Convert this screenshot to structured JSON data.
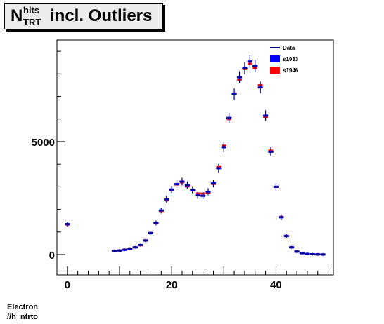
{
  "title": {
    "base": "N",
    "sup": "hits",
    "sub": "TRT",
    "rest": "incl. Outliers"
  },
  "footer": {
    "line1": "Electron",
    "line2": "//h_ntrto"
  },
  "colors": {
    "data": "#00008b",
    "s1933": "#0000ff",
    "s1946": "#ff0000"
  },
  "chart_data": {
    "type": "scatter",
    "title": "N_TRT^hits incl. Outliers",
    "xlabel": "",
    "ylabel": "",
    "xlim": [
      -2,
      51
    ],
    "ylim": [
      -900,
      9500
    ],
    "xticks": [
      0,
      20,
      40
    ],
    "yticks": [
      0,
      5000
    ],
    "legend": {
      "placement": "top-right",
      "entries": [
        "Data",
        "s1933",
        "s1946"
      ]
    },
    "x": [
      0,
      9,
      10,
      11,
      12,
      13,
      14,
      15,
      16,
      17,
      18,
      19,
      20,
      21,
      22,
      23,
      24,
      25,
      26,
      27,
      28,
      29,
      30,
      31,
      32,
      33,
      34,
      35,
      36,
      37,
      38,
      39,
      40,
      41,
      42,
      43,
      44,
      45,
      46,
      47,
      48,
      49
    ],
    "series": [
      {
        "name": "Data",
        "style": "line",
        "values": [
          1350,
          160,
          180,
          210,
          260,
          320,
          420,
          620,
          950,
          1400,
          1950,
          2450,
          2880,
          3120,
          3230,
          3070,
          2870,
          2620,
          2600,
          2780,
          3150,
          3820,
          4750,
          6050,
          7100,
          7850,
          8250,
          8550,
          8350,
          7400,
          6150,
          4550,
          3000,
          1650,
          820,
          320,
          130,
          60,
          30,
          15,
          8,
          5
        ]
      },
      {
        "name": "s1933",
        "style": "box",
        "values": [
          1350,
          160,
          180,
          210,
          260,
          320,
          420,
          620,
          950,
          1400,
          1950,
          2450,
          2880,
          3120,
          3230,
          3070,
          2870,
          2620,
          2600,
          2780,
          3150,
          3820,
          4750,
          6050,
          7100,
          7850,
          8250,
          8550,
          8350,
          7400,
          6150,
          4550,
          3000,
          1650,
          820,
          320,
          130,
          60,
          30,
          15,
          8,
          5
        ]
      },
      {
        "name": "s1946",
        "style": "box",
        "values": [
          1330,
          160,
          175,
          215,
          255,
          320,
          410,
          630,
          960,
          1380,
          1900,
          2400,
          2850,
          3100,
          3200,
          3020,
          2840,
          2700,
          2700,
          2720,
          3130,
          3900,
          4820,
          6000,
          7130,
          7750,
          8220,
          8450,
          8250,
          7500,
          6100,
          4600,
          3000,
          1670,
          830,
          320,
          135,
          60,
          30,
          15,
          8,
          5
        ]
      }
    ]
  }
}
